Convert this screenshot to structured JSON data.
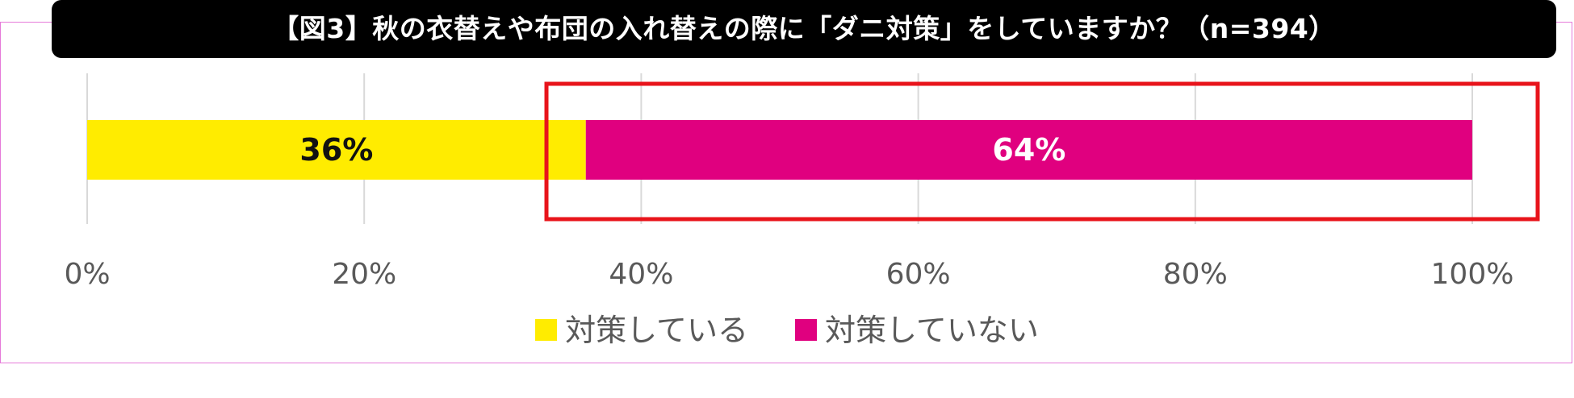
{
  "title": "【図3】秋の衣替えや布団の入れ替えの際に「ダニ対策」をしていますか？（n=394）",
  "chart_data": {
    "type": "bar",
    "orientation": "horizontal",
    "stacked": true,
    "categories": [
      ""
    ],
    "series": [
      {
        "name": "対策している",
        "values": [
          36
        ],
        "label": "36%",
        "color": "#ffec00",
        "label_color": "#111111"
      },
      {
        "name": "対策していない",
        "values": [
          64
        ],
        "label": "64%",
        "color": "#e0007f",
        "label_color": "#ffffff"
      }
    ],
    "xlim": [
      0,
      100
    ],
    "x_ticks": [
      "0%",
      "20%",
      "40%",
      "60%",
      "80%",
      "100%"
    ],
    "grid": true,
    "legend_position": "bottom",
    "highlight": {
      "series": "対策していない",
      "color": "#e8141b"
    }
  },
  "colors": {
    "frame_border": "#e57ad9",
    "title_background": "#000000",
    "gridline": "#d9d9d9",
    "tick_label": "#595959"
  }
}
